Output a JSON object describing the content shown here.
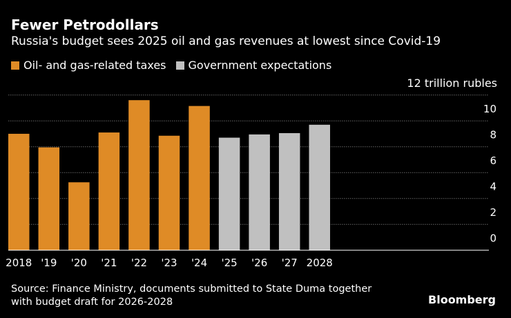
{
  "title": "Fewer Petrodollars",
  "subtitle": "Russia's budget sees 2025 oil and gas revenues at lowest since Covid-19",
  "source": [
    "Source: Finance Ministry, documents submitted to State Duma together",
    "with budget draft for 2026-2028"
  ],
  "logo": "Bloomberg",
  "chart_data": {
    "type": "bar",
    "unit_label": "12 trillion rubles",
    "categories": [
      "2018",
      "'19",
      "'20",
      "'21",
      "'22",
      "'23",
      "'24",
      "'25",
      "'26",
      "'27",
      "2028"
    ],
    "series": [
      {
        "name": "Oil- and gas-related taxes",
        "color": "#df8b26",
        "values": [
          9.0,
          7.95,
          5.25,
          9.1,
          11.6,
          8.85,
          11.15,
          null,
          null,
          null,
          null
        ]
      },
      {
        "name": "Government expectations",
        "color": "#c0c0c0",
        "values": [
          null,
          null,
          null,
          null,
          null,
          null,
          null,
          8.7,
          8.95,
          9.05,
          9.7
        ]
      }
    ],
    "yticks": [
      "0",
      "2",
      "4",
      "6",
      "8",
      "10"
    ],
    "ylim": [
      0,
      12
    ],
    "grid": true,
    "legend": "top-left"
  }
}
